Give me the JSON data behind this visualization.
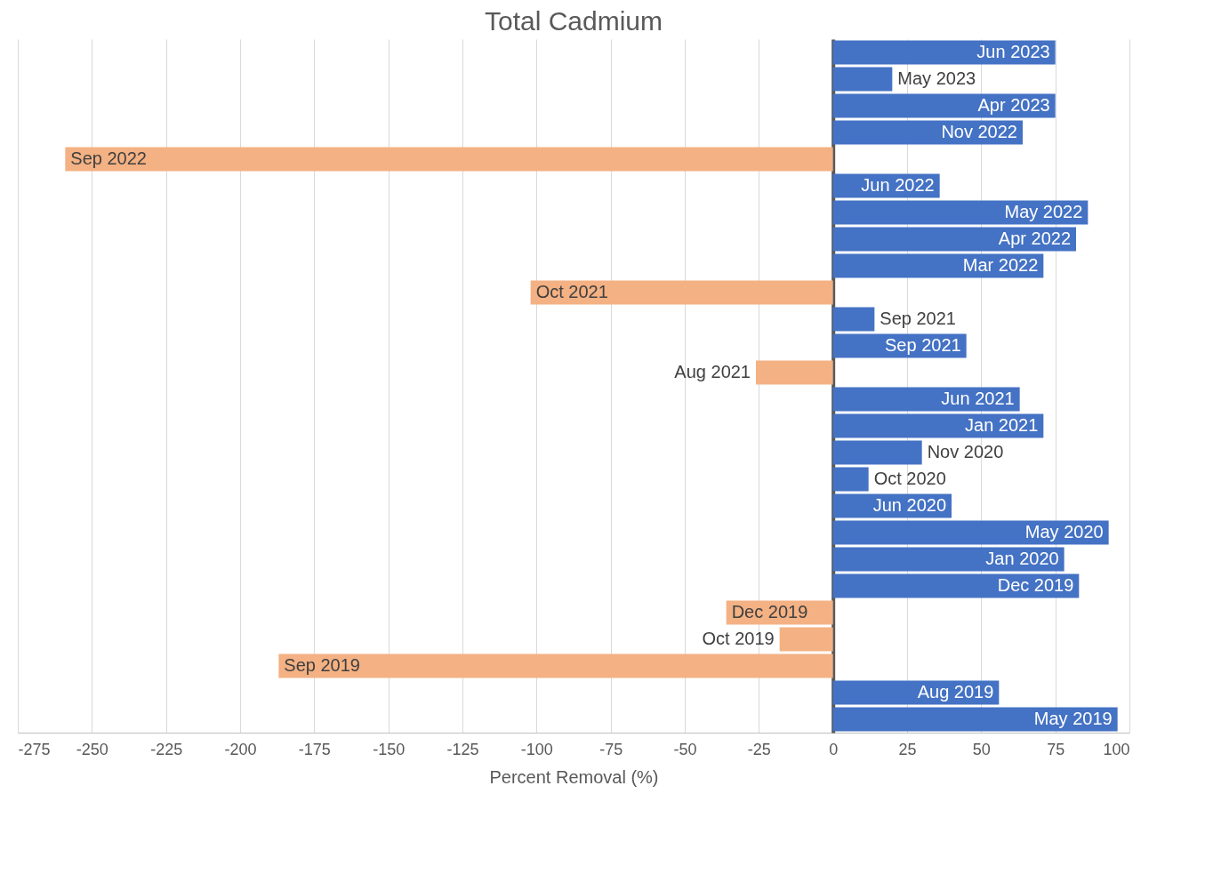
{
  "chart_data": {
    "type": "bar",
    "orientation": "horizontal",
    "title": "Total Cadmium",
    "xlabel": "Percent Removal (%)",
    "categories": [
      "Jun 2023",
      "May 2023",
      "Apr 2023",
      "Nov 2022",
      "Sep 2022",
      "Jun 2022",
      "May 2022",
      "Apr 2022",
      "Mar 2022",
      "Oct 2021",
      "Sep 2021",
      "Sep 2021",
      "Aug 2021",
      "Jun 2021",
      "Jan 2021",
      "Nov 2020",
      "Oct 2020",
      "Jun 2020",
      "May 2020",
      "Jan 2020",
      "Dec 2019",
      "Dec 2019",
      "Oct 2019",
      "Sep 2019",
      "Aug 2019",
      "May 2019"
    ],
    "values": [
      75,
      20,
      75,
      64,
      -259,
      36,
      86,
      82,
      71,
      -102,
      14,
      45,
      -26,
      63,
      71,
      30,
      12,
      40,
      93,
      78,
      83,
      -36,
      -18,
      -187,
      56,
      96
    ],
    "colors": [
      "#4472c4",
      "#4472c4",
      "#4472c4",
      "#4472c4",
      "#f4b183",
      "#4472c4",
      "#4472c4",
      "#4472c4",
      "#4472c4",
      "#f4b183",
      "#4472c4",
      "#4472c4",
      "#f4b183",
      "#4472c4",
      "#4472c4",
      "#4472c4",
      "#4472c4",
      "#4472c4",
      "#4472c4",
      "#4472c4",
      "#4472c4",
      "#f4b183",
      "#f4b183",
      "#f4b183",
      "#4472c4",
      "#4472c4"
    ],
    "xlim": [
      -275,
      100
    ],
    "xticks": [
      -275,
      -250,
      -225,
      -200,
      -175,
      -150,
      -125,
      -100,
      -75,
      -50,
      -25,
      0,
      25,
      50,
      75,
      100
    ],
    "grid": "x",
    "tick_labels": "x"
  }
}
